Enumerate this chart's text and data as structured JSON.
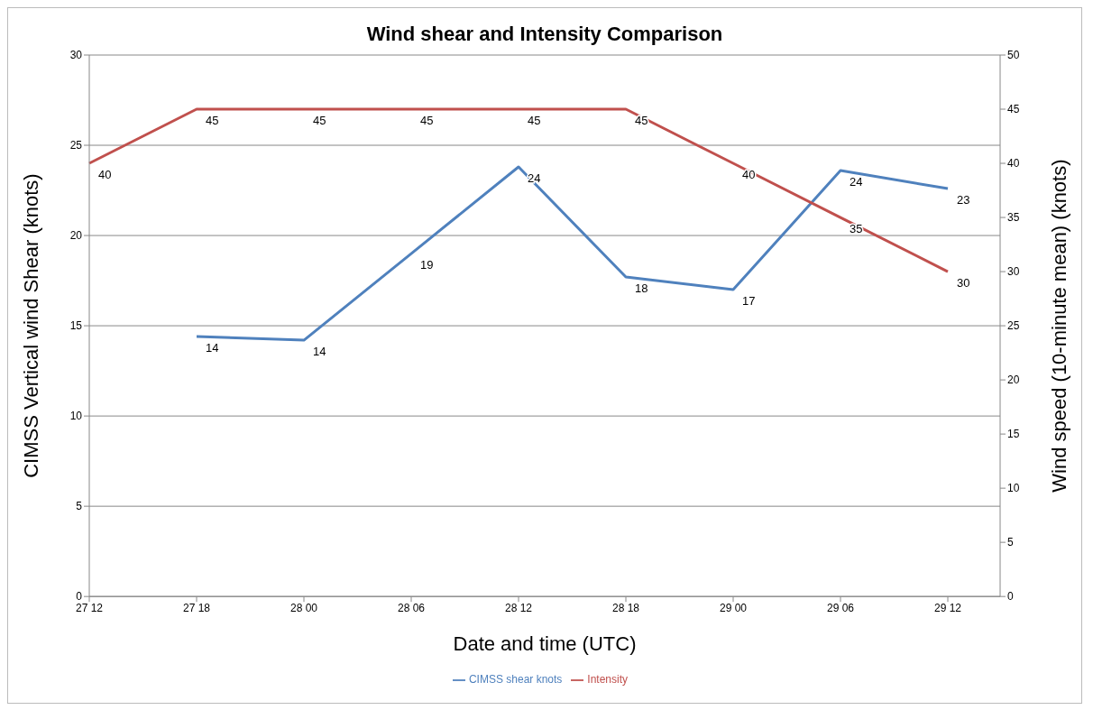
{
  "chart_data": {
    "type": "line",
    "title": "Wind shear and Intensity Comparison",
    "xlabel": "Date and time (UTC)",
    "ylabel": "CIMSS Vertical wind Shear (knots)",
    "y2label": "Wind speed (10-minute mean) (knots)",
    "categories": [
      "27 12",
      "27 18",
      "28 00",
      "28 06",
      "28 12",
      "28 18",
      "29 00",
      "29 06",
      "29 12"
    ],
    "series": [
      {
        "name": "CIMSS shear knots",
        "color": "#4f81bd",
        "values": [
          null,
          14.4,
          14.2,
          19.0,
          23.8,
          17.7,
          17.0,
          23.6,
          22.6
        ],
        "value_labels": [
          null,
          "14",
          "14",
          "19",
          "24",
          "18",
          "17",
          "24",
          "23"
        ]
      },
      {
        "name": "Intensity",
        "color": "#c0504d",
        "axis": "y2",
        "values": [
          40,
          45,
          45,
          45,
          45,
          45,
          40,
          35,
          30
        ],
        "value_labels": [
          "40",
          "45",
          "45",
          "45",
          "45",
          "45",
          "40",
          "35",
          "30"
        ]
      }
    ],
    "ylim": [
      0,
      30
    ],
    "yticks": [
      0,
      5,
      10,
      15,
      20,
      25,
      30
    ],
    "y2lim": [
      0,
      50
    ],
    "y2ticks": [
      0,
      5,
      10,
      15,
      20,
      25,
      30,
      35,
      40,
      45,
      50
    ],
    "grid": "y",
    "legend": "bottom",
    "marker": "none",
    "line_style": "solid"
  }
}
